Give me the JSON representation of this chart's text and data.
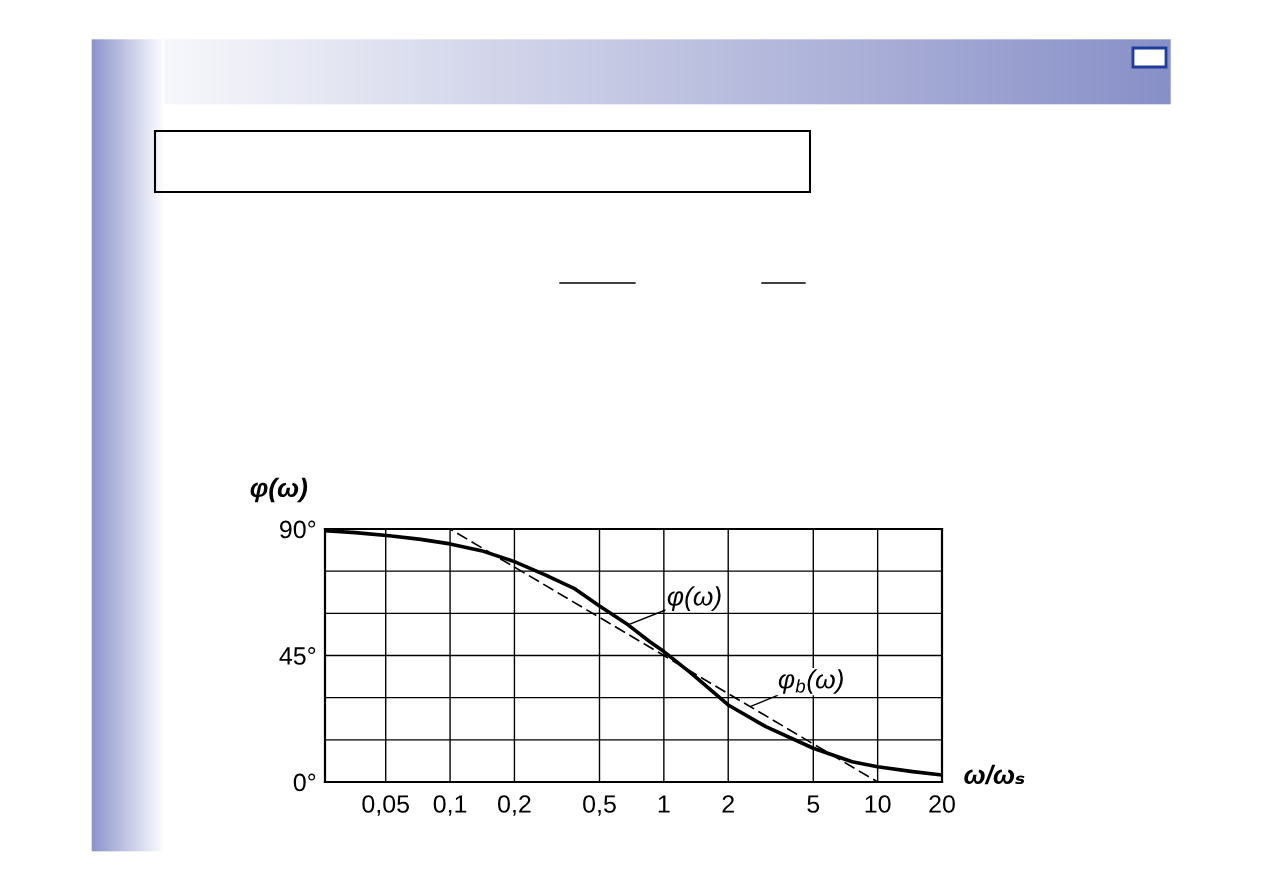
{
  "chart_data": {
    "type": "line",
    "xlabel": "ω/ωₛ",
    "ylabel": "φ(ω)",
    "log": "x",
    "xlim": [
      0.026,
      20
    ],
    "xticks": [
      {
        "value": 0.05,
        "label": "0,05"
      },
      {
        "value": 0.1,
        "label": "0,1"
      },
      {
        "value": 0.2,
        "label": "0,2"
      },
      {
        "value": 0.5,
        "label": "0,5"
      },
      1,
      2,
      5,
      10,
      20
    ],
    "ylim": [
      0,
      90
    ],
    "yticks": [
      {
        "value": 0,
        "label": "0°"
      },
      {
        "value": 15,
        "label": null
      },
      {
        "value": 30,
        "label": null
      },
      {
        "value": 45,
        "label": "45°"
      },
      {
        "value": 60,
        "label": null
      },
      {
        "value": 75,
        "label": null
      },
      {
        "value": 90,
        "label": "90°"
      }
    ],
    "grid": true,
    "series": [
      {
        "name": "φ(ω)",
        "color": "#000000",
        "line_style": "solid",
        "x": [
          0.026,
          0.036,
          0.052,
          0.073,
          0.1,
          0.14,
          0.2,
          0.28,
          0.38,
          0.5,
          0.68,
          0.86,
          1,
          1.34,
          2,
          3,
          5,
          7.6,
          10,
          14.6,
          20
        ],
        "values": [
          89.4,
          88.7,
          87.6,
          86.3,
          84.7,
          82.3,
          78.4,
          73.6,
          68.9,
          62.6,
          55.9,
          49.9,
          46.4,
          38.7,
          27.4,
          19.7,
          12,
          7.2,
          5.4,
          3.7,
          2.5
        ]
      },
      {
        "name": "φ$_{b}$(ω)",
        "color": "#000000",
        "line_style": "dashed",
        "x": [
          0.026,
          0.1,
          10,
          20
        ],
        "values": [
          90,
          90,
          0,
          0
        ]
      }
    ]
  }
}
